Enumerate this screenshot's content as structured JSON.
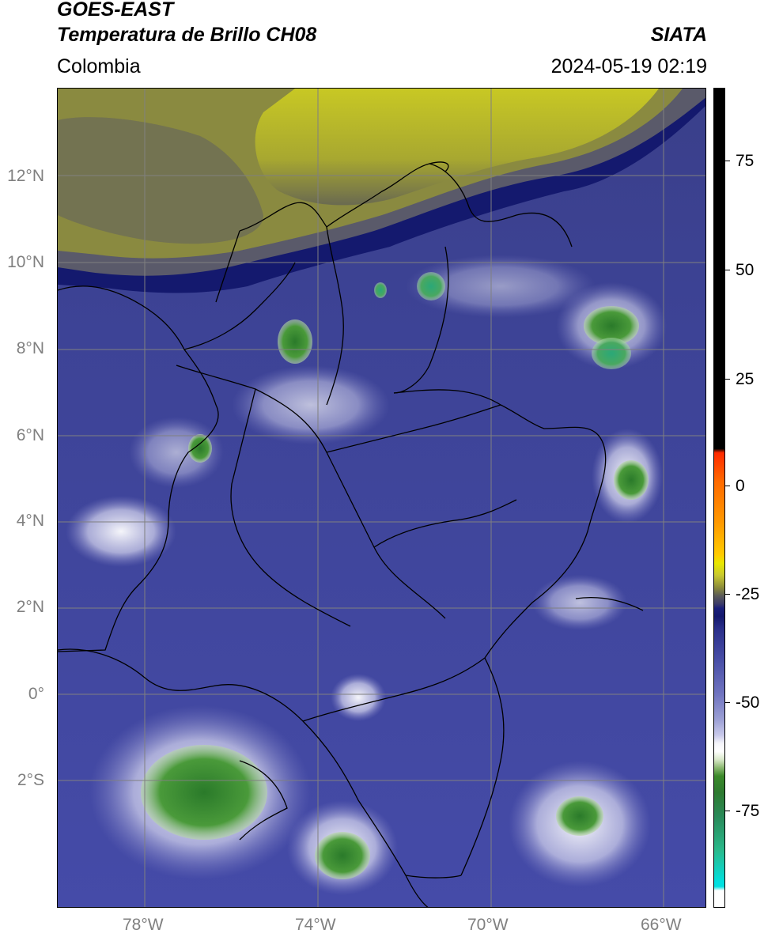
{
  "header": {
    "satellite": "GOES-EAST",
    "product": "Temperatura de Brillo CH08",
    "brand": "SIATA",
    "region": "Colombia",
    "timestamp": "2024-05-19 02:19"
  },
  "map": {
    "lat_labels": [
      "12°N",
      "10°N",
      "8°N",
      "6°N",
      "4°N",
      "2°N",
      "0°",
      "2°S"
    ],
    "lon_labels": [
      "78°W",
      "74°W",
      "70°W",
      "66°W"
    ],
    "extent": {
      "lon_min": -80,
      "lon_max": -65,
      "lat_min": -5.2,
      "lat_max": 14
    }
  },
  "colorbar": {
    "ticks": [
      "75",
      "50",
      "25",
      "0",
      "-25",
      "-50",
      "-75"
    ],
    "colors": {
      "black": "#000000",
      "red": "#ff2a00",
      "orange": "#ff9900",
      "yellow": "#e8e800",
      "olive": "#8a8a3a",
      "navy": "#1a1f7a",
      "blue_purple": "#4a50a8",
      "lavender": "#c8c8ea",
      "white": "#ffffff",
      "green": "#3b8a2a",
      "teal": "#2ab88a",
      "cyan": "#00e0e0"
    }
  },
  "colors": {
    "ocean_moist": "#3a3f9a",
    "dry_air": "#b8b828",
    "dark_band": "#14196e",
    "cloud_white": "#e8e8f4",
    "convection_green": "#3d9a3a",
    "grid": "#808080",
    "boundary": "#000000"
  }
}
